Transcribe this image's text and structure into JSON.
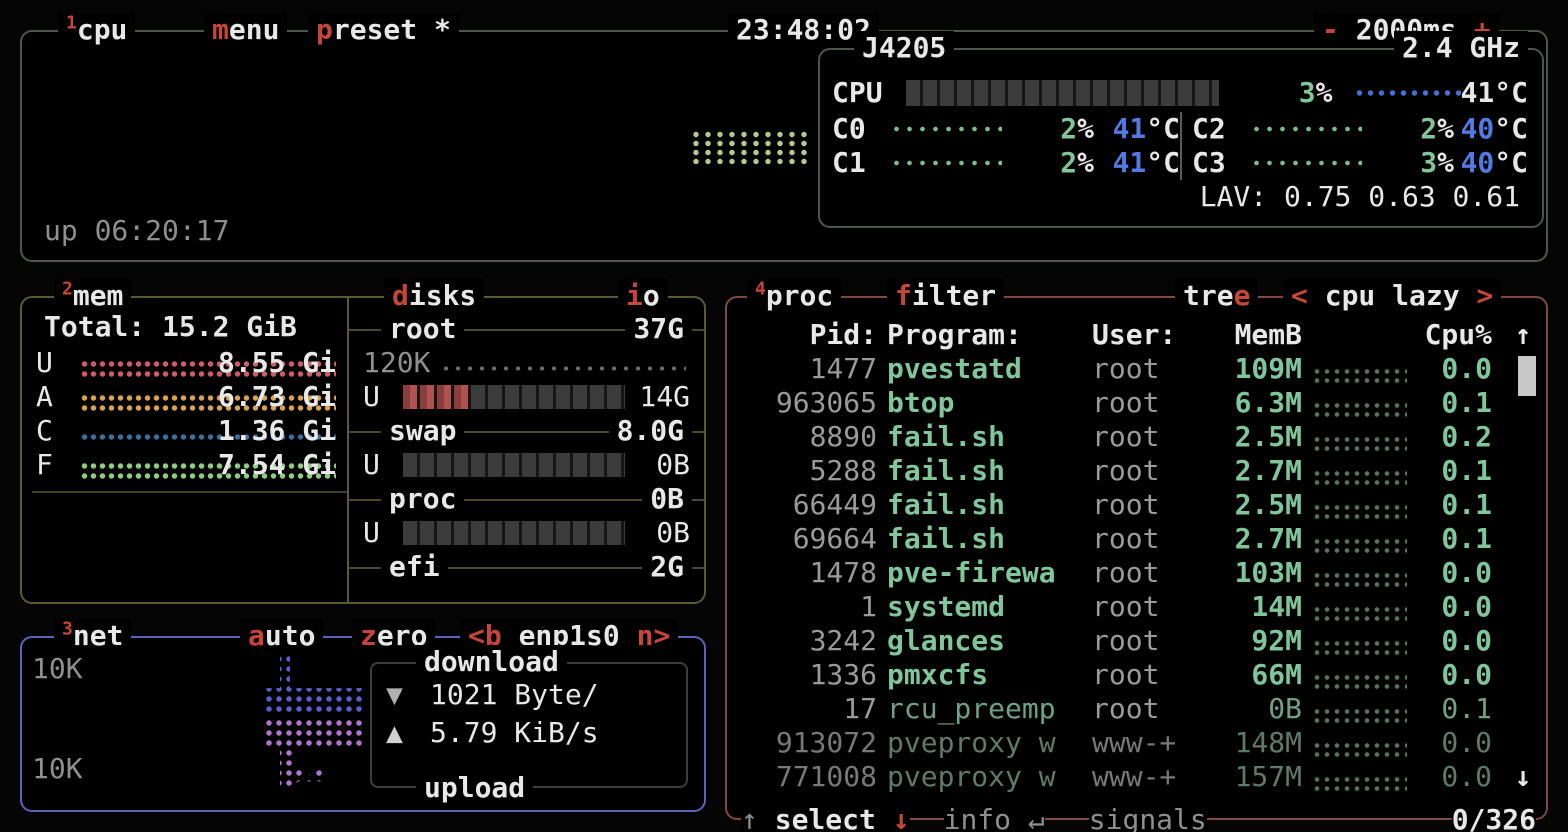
{
  "titlebar": {
    "box_num": "1",
    "box_title": "cpu",
    "menu_hot": "m",
    "menu_rest": "enu",
    "preset_hot": "p",
    "preset_rest": "reset *",
    "clock": "23:48:02",
    "interval_minus": "-",
    "interval_value": "2000ms",
    "interval_plus": "+"
  },
  "cpu": {
    "uptime": "up 06:20:17",
    "model": "J4205",
    "freq": "2.4 GHz",
    "total": {
      "label": "CPU",
      "pct": "3",
      "pct_unit": "%",
      "temp": "41°C"
    },
    "temp_unit": "°C",
    "cores": [
      {
        "label": "C0",
        "pct": "2",
        "temp": "41"
      },
      {
        "label": "C1",
        "pct": "2",
        "temp": "41"
      },
      {
        "label": "C2",
        "pct": "2",
        "temp": "40"
      },
      {
        "label": "C3",
        "pct": "3",
        "temp": "40"
      }
    ],
    "lav_label": "LAV:",
    "lav_values": "0.75 0.63 0.61"
  },
  "mem": {
    "box_num": "2",
    "box_title": "mem",
    "total_label": "Total:",
    "total_value": "15.2 GiB",
    "rows": [
      {
        "label": "U",
        "value": "8.55 Gi"
      },
      {
        "label": "A",
        "value": "6.73 Gi"
      },
      {
        "label": "C",
        "value": "1.36 Gi"
      },
      {
        "label": "F",
        "value": "7.54 Gi"
      }
    ]
  },
  "disks": {
    "title_hot": "d",
    "title_rest": "isks",
    "io_hot": "i",
    "io_rest": "o",
    "entries": [
      {
        "name": "root",
        "size": "37G",
        "io_value": "120K",
        "used_label": "U",
        "used": "14G",
        "meter_pct": 30
      },
      {
        "name": "swap",
        "size": "8.0G",
        "used_label": "U",
        "used": "0B",
        "meter_pct": 0
      },
      {
        "name": "proc",
        "size": "0B",
        "used_label": "U",
        "used": "0B",
        "meter_pct": 0
      },
      {
        "name": "efi",
        "size": "2G"
      }
    ]
  },
  "net": {
    "box_num": "3",
    "box_title": "net",
    "auto_hot": "a",
    "auto_rest": "uto",
    "zero_hot": "z",
    "zero_rest": "ero",
    "b_btn": "<b",
    "iface": "enp1s0",
    "n_btn": "n>",
    "scale_top": "10K",
    "scale_bottom": "10K",
    "download_label": "download",
    "down_arrow": "▼",
    "down_value": "1021 Byte/",
    "up_arrow": "▲",
    "up_value": "5.79 KiB/s",
    "upload_label": "upload"
  },
  "proc": {
    "box_num": "4",
    "box_title": "proc",
    "filter_hot": "f",
    "filter_rest": "ilter",
    "tree_pre": "tre",
    "tree_hot": "e",
    "sort_left": "<",
    "sort_value": "cpu lazy",
    "sort_right": ">",
    "header": {
      "pid": "Pid:",
      "program": "Program:",
      "user": "User:",
      "mem": "MemB",
      "cpu": "Cpu%",
      "sort_arrow": "↑"
    },
    "rows": [
      {
        "pid": "1477",
        "program": "pvestatd",
        "user": "root",
        "mem": "109M",
        "cpu": "0.0",
        "cls": ""
      },
      {
        "pid": "963065",
        "program": "btop",
        "user": "root",
        "mem": "6.3M",
        "cpu": "0.1",
        "cls": ""
      },
      {
        "pid": "8890",
        "program": "fail.sh",
        "user": "root",
        "mem": "2.5M",
        "cpu": "0.2",
        "cls": ""
      },
      {
        "pid": "5288",
        "program": "fail.sh",
        "user": "root",
        "mem": "2.7M",
        "cpu": "0.1",
        "cls": ""
      },
      {
        "pid": "66449",
        "program": "fail.sh",
        "user": "root",
        "mem": "2.5M",
        "cpu": "0.1",
        "cls": ""
      },
      {
        "pid": "69664",
        "program": "fail.sh",
        "user": "root",
        "mem": "2.7M",
        "cpu": "0.1",
        "cls": ""
      },
      {
        "pid": "1478",
        "program": "pve-firewa",
        "user": "root",
        "mem": "103M",
        "cpu": "0.0",
        "cls": ""
      },
      {
        "pid": "1",
        "program": "systemd",
        "user": "root",
        "mem": "14M",
        "cpu": "0.0",
        "cls": ""
      },
      {
        "pid": "3242",
        "program": "glances",
        "user": "root",
        "mem": "92M",
        "cpu": "0.0",
        "cls": ""
      },
      {
        "pid": "1336",
        "program": "pmxcfs",
        "user": "root",
        "mem": "66M",
        "cpu": "0.0",
        "cls": ""
      },
      {
        "pid": "17",
        "program": "rcu_preemp",
        "user": "root",
        "mem": "0B",
        "cpu": "0.1",
        "cls": "mid"
      },
      {
        "pid": "913072",
        "program": "pveproxy w",
        "user": "www-+",
        "mem": "148M",
        "cpu": "0.0",
        "cls": "dim"
      },
      {
        "pid": "771008",
        "program": "pveproxy w",
        "user": "www-+",
        "mem": "157M",
        "cpu": "0.0",
        "cls": "dim"
      }
    ],
    "scroll_down_arrow": "↓",
    "footer": {
      "up": "↑",
      "select": "select",
      "down": "↓",
      "info": "info",
      "enter": "↵",
      "signals": "signals",
      "count": "0/326"
    }
  },
  "colors": {
    "accent_red": "#c8453a",
    "green": "#7fc79a",
    "blue": "#5379e2",
    "cpu_border": "#4e564c",
    "mem_border": "#5c5a32",
    "net_border": "#5d63b8",
    "proc_border": "#7e4b42",
    "mem_used": "#d05c6a",
    "mem_available": "#d9a354",
    "mem_cached": "#3c6e9e",
    "mem_free": "#8fce7f",
    "net_down": "#5a5fd0",
    "net_up": "#b274cf",
    "cpu_graph": "#b7c98a"
  }
}
